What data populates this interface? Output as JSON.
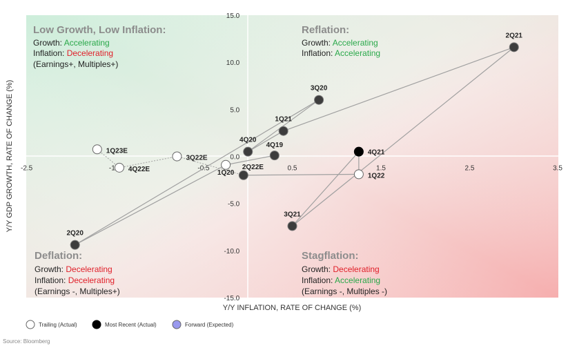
{
  "chart_data": {
    "type": "scatter",
    "xlabel": "Y/Y INFLATION, RATE OF CHANGE (%)",
    "ylabel": "Y/Y GDP GROWTH, RATE OF CHANGE (%)",
    "xlim": [
      -2.5,
      3.5
    ],
    "ylim": [
      -15.0,
      15.0
    ],
    "x_ticks": [
      "-2.5",
      "-1.5",
      "-0.5",
      "0.5",
      "1.5",
      "2.5",
      "3.5"
    ],
    "y_ticks": [
      "15.0",
      "10.0",
      "5.0",
      "0.0",
      "-5.0",
      "-10.0",
      "-15.0"
    ],
    "grid": false,
    "path_order": [
      "4Q19",
      "1Q20",
      "2Q20",
      "3Q20",
      "4Q20",
      "1Q21",
      "2Q21",
      "3Q21",
      "4Q21",
      "1Q22",
      "2Q22E",
      "3Q22E",
      "4Q22E",
      "1Q23E"
    ],
    "points": [
      {
        "label": "4Q19",
        "x": 0.3,
        "y": 0.1,
        "kind": "actual"
      },
      {
        "label": "1Q20",
        "x": -0.25,
        "y": -0.9,
        "kind": "trailing"
      },
      {
        "label": "2Q20",
        "x": -1.95,
        "y": -9.4,
        "kind": "actual"
      },
      {
        "label": "3Q20",
        "x": 0.8,
        "y": 6.0,
        "kind": "actual"
      },
      {
        "label": "4Q20",
        "x": 0.0,
        "y": 0.5,
        "kind": "actual"
      },
      {
        "label": "1Q21",
        "x": 0.4,
        "y": 2.7,
        "kind": "actual"
      },
      {
        "label": "2Q21",
        "x": 3.0,
        "y": 11.6,
        "kind": "actual"
      },
      {
        "label": "3Q21",
        "x": 0.5,
        "y": -7.4,
        "kind": "actual"
      },
      {
        "label": "4Q21",
        "x": 1.25,
        "y": 0.5,
        "kind": "most_recent"
      },
      {
        "label": "1Q22",
        "x": 1.25,
        "y": -1.9,
        "kind": "trailing"
      },
      {
        "label": "2Q22E",
        "x": -0.05,
        "y": -2.0,
        "kind": "actual"
      },
      {
        "label": "3Q22E",
        "x": -0.8,
        "y": 0.0,
        "kind": "trailing"
      },
      {
        "label": "4Q22E",
        "x": -1.45,
        "y": -1.2,
        "kind": "trailing"
      },
      {
        "label": "1Q23E",
        "x": -1.7,
        "y": 0.75,
        "kind": "trailing"
      }
    ],
    "legend": [
      {
        "label": "Trailing (Actual)",
        "kind": "trailing",
        "color": "#ffffff"
      },
      {
        "label": "Most Recent (Actual)",
        "kind": "most_recent",
        "color": "#000000"
      },
      {
        "label": "Forward (Expected)",
        "kind": "forward",
        "color": "#9999ee"
      }
    ]
  },
  "quadrants": {
    "top_left": {
      "title": "Low Growth, Low Inflation:",
      "growth_prefix": "Growth: ",
      "growth_value": "Accelerating",
      "inflation_prefix": "Inflation: ",
      "inflation_value": "Decelerating",
      "note": "(Earnings+, Multiples+)"
    },
    "top_right": {
      "title": "Reflation:",
      "growth_prefix": "Growth: ",
      "growth_value": "Accelerating",
      "inflation_prefix": "Inflation: ",
      "inflation_value": "Accelerating"
    },
    "bottom_left": {
      "title": "Deflation:",
      "growth_prefix": "Growth: ",
      "growth_value": "Decelerating",
      "inflation_prefix": "Inflation: ",
      "inflation_value": "Decelerating",
      "note": "(Earnings -, Multiples+)"
    },
    "bottom_right": {
      "title": "Stagflation:",
      "growth_prefix": "Growth: ",
      "growth_value": "Decelerating",
      "inflation_prefix": "Inflation: ",
      "inflation_value": "Accelerating",
      "note": "(Earnings -, Multiples -)"
    }
  },
  "colors": {
    "accelerating": "#2aa84a",
    "decelerating": "#e0202a",
    "actual_point": "#3d3d3d",
    "path_line": "#a0a0a0"
  },
  "source": "Source: Bloomberg"
}
